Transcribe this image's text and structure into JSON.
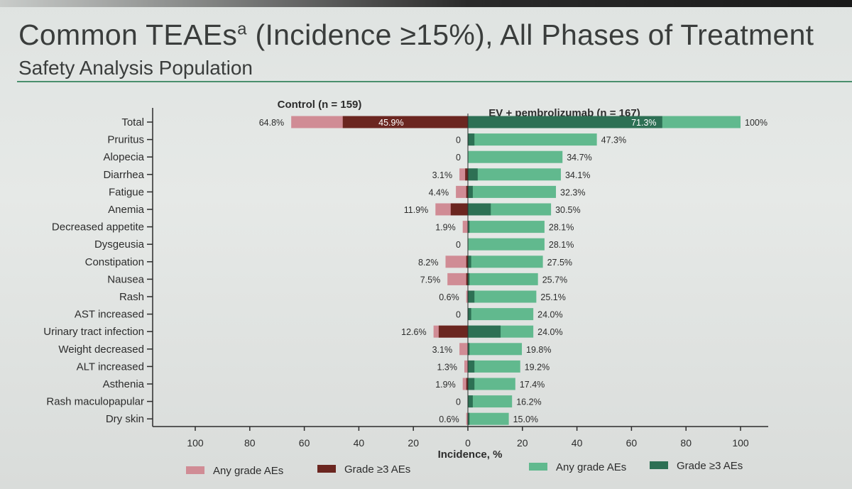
{
  "slide": {
    "title_main": "Common TEAEs",
    "title_sup": "a",
    "title_rest": " (Incidence ≥15%), All Phases of Treatment",
    "subtitle": "Safety Analysis Population"
  },
  "colors": {
    "control_any": "#d08c95",
    "control_g3": "#6b2620",
    "ev_any": "#61b98e",
    "ev_g3": "#2d7054",
    "axis": "#2c2c2c",
    "title_rule": "#4a8f6d"
  },
  "chart_data": {
    "type": "bar",
    "orientation": "horizontal-butterfly",
    "xlabel": "Incidence, %",
    "xlim": [
      -100,
      100
    ],
    "x_ticks": [
      100,
      80,
      60,
      40,
      20,
      0,
      20,
      40,
      60,
      80,
      100
    ],
    "control_header": "Control (n = 159)",
    "ev_header": "EV + pembrolizumab (n = 167)",
    "categories": [
      "Total",
      "Pruritus",
      "Alopecia",
      "Diarrhea",
      "Fatigue",
      "Anemia",
      "Decreased appetite",
      "Dysgeusia",
      "Constipation",
      "Nausea",
      "Rash",
      "AST increased",
      "Urinary tract infection",
      "Weight decreased",
      "ALT increased",
      "Asthenia",
      "Rash maculopapular",
      "Dry skin"
    ],
    "series": [
      {
        "name": "Any grade AEs",
        "group": "control",
        "values": [
          64.8,
          0,
          0,
          3.1,
          4.4,
          11.9,
          1.9,
          0,
          8.2,
          7.5,
          0.6,
          0,
          12.6,
          3.1,
          1.3,
          1.9,
          0,
          0.6
        ]
      },
      {
        "name": "Grade ≥3 AEs",
        "group": "control",
        "values": [
          45.9,
          0,
          0,
          1.0,
          0.6,
          6.3,
          0,
          0,
          0.6,
          0.6,
          0,
          0,
          10.7,
          0,
          0,
          0.6,
          0,
          0
        ]
      },
      {
        "name": "Any grade AEs",
        "group": "ev",
        "values": [
          100,
          47.3,
          34.7,
          34.1,
          32.3,
          30.5,
          28.1,
          28.1,
          27.5,
          25.7,
          25.1,
          24.0,
          24.0,
          19.8,
          19.2,
          17.4,
          16.2,
          15.0
        ]
      },
      {
        "name": "Grade ≥3 AEs",
        "group": "ev",
        "values": [
          71.3,
          2.4,
          0,
          3.6,
          1.8,
          8.4,
          0.6,
          0,
          1.2,
          0.6,
          2.4,
          1.2,
          12.0,
          0.6,
          2.4,
          2.4,
          1.8,
          0.6
        ]
      }
    ],
    "control_labels": [
      "64.8%",
      "0",
      "0",
      "3.1%",
      "4.4%",
      "11.9%",
      "1.9%",
      "0",
      "8.2%",
      "7.5%",
      "0.6%",
      "0",
      "12.6%",
      "3.1%",
      "1.3%",
      "1.9%",
      "0",
      "0.6%"
    ],
    "ev_labels": [
      "100%",
      "47.3%",
      "34.7%",
      "34.1%",
      "32.3%",
      "30.5%",
      "28.1%",
      "28.1%",
      "27.5%",
      "25.7%",
      "25.1%",
      "24.0%",
      "24.0%",
      "19.8%",
      "19.2%",
      "17.4%",
      "16.2%",
      "15.0%"
    ],
    "inner_labels": {
      "control_total_g3": "45.9%",
      "ev_total_g3": "71.3%"
    },
    "legend": [
      {
        "label": "Any grade AEs",
        "color": "#d08c95"
      },
      {
        "label": "Grade ≥3 AEs",
        "color": "#6b2620"
      },
      {
        "label": "Any grade AEs",
        "color": "#61b98e"
      },
      {
        "label": "Grade ≥3 AEs",
        "color": "#2d7054"
      }
    ],
    "legend_position": "bottom"
  }
}
